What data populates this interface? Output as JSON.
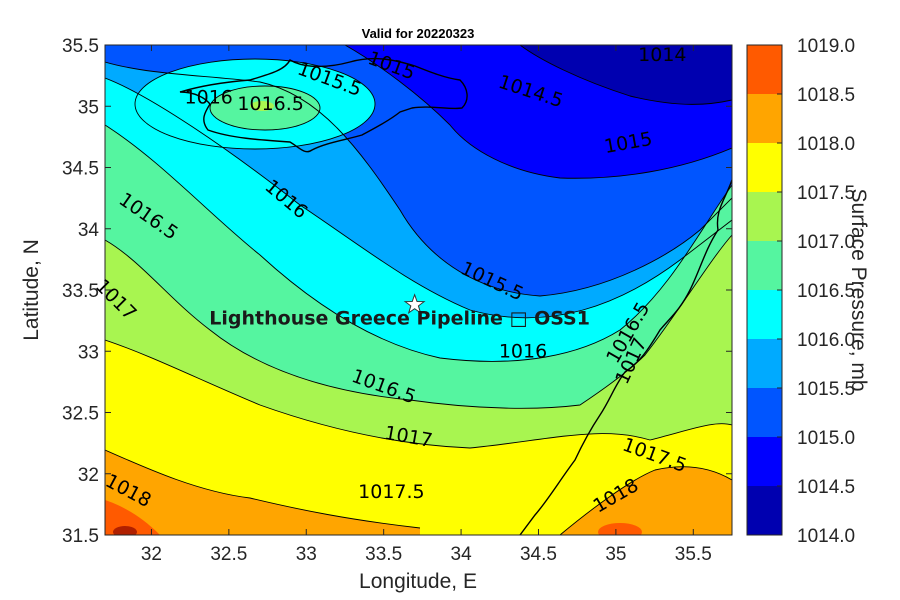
{
  "title": "Valid for 20220323",
  "xlabel": "Longitude, E",
  "ylabel": "Latitude, N",
  "colorbar_label": "Surface Pressure, mb",
  "x_ticks": [
    "32",
    "32.5",
    "33",
    "33.5",
    "34",
    "34.5",
    "35",
    "35.5"
  ],
  "y_ticks": [
    "35.5",
    "35",
    "34.5",
    "34",
    "33.5",
    "33",
    "32.5",
    "32",
    "31.5"
  ],
  "colorbar_ticks": [
    "1019.0",
    "1018.5",
    "1018.0",
    "1017.5",
    "1017.0",
    "1016.5",
    "1016.0",
    "1015.5",
    "1015.0",
    "1014.5",
    "1014.0"
  ],
  "colorbar_colors": [
    "#ff5a00",
    "#ffa500",
    "#ffff00",
    "#a8f550",
    "#55f5a0",
    "#00ffff",
    "#00aaff",
    "#0055ff",
    "#0000ff",
    "#0000b0"
  ],
  "site": {
    "label": "Lighthouse Greece Pipeline □ OSS1",
    "lon": 33.7,
    "lat": 33.38
  },
  "contour_labels": [
    {
      "text": "1014",
      "lon": 35.3,
      "lat": 35.42,
      "rot": 0
    },
    {
      "text": "1014.5",
      "lon": 34.45,
      "lat": 35.12,
      "rot": 18
    },
    {
      "text": "1015",
      "lon": 33.55,
      "lat": 35.33,
      "rot": 20
    },
    {
      "text": "1015.5",
      "lon": 33.15,
      "lat": 35.22,
      "rot": 20
    },
    {
      "text": "1016",
      "lon": 32.37,
      "lat": 35.07,
      "rot": 0
    },
    {
      "text": "1016.5",
      "lon": 32.77,
      "lat": 35.02,
      "rot": 0
    },
    {
      "text": "1015",
      "lon": 35.08,
      "lat": 34.7,
      "rot": -10
    },
    {
      "text": "1016",
      "lon": 32.87,
      "lat": 34.24,
      "rot": 40
    },
    {
      "text": "1016.5",
      "lon": 31.98,
      "lat": 34.1,
      "rot": 35
    },
    {
      "text": "1015.5",
      "lon": 34.2,
      "lat": 33.57,
      "rot": 25
    },
    {
      "text": "1017",
      "lon": 31.77,
      "lat": 33.42,
      "rot": 45
    },
    {
      "text": "1016",
      "lon": 34.4,
      "lat": 33.0,
      "rot": 0
    },
    {
      "text": "1016.5",
      "lon": 35.08,
      "lat": 33.15,
      "rot": -60
    },
    {
      "text": "1017",
      "lon": 35.1,
      "lat": 32.92,
      "rot": -65
    },
    {
      "text": "1016.5",
      "lon": 33.5,
      "lat": 32.71,
      "rot": 20
    },
    {
      "text": "1017",
      "lon": 33.66,
      "lat": 32.3,
      "rot": 10
    },
    {
      "text": "1017.5",
      "lon": 35.25,
      "lat": 32.15,
      "rot": 20
    },
    {
      "text": "1018",
      "lon": 31.85,
      "lat": 31.86,
      "rot": 28
    },
    {
      "text": "1017.5",
      "lon": 33.55,
      "lat": 31.85,
      "rot": 0
    },
    {
      "text": "1018",
      "lon": 35.0,
      "lat": 31.82,
      "rot": -30
    }
  ]
}
